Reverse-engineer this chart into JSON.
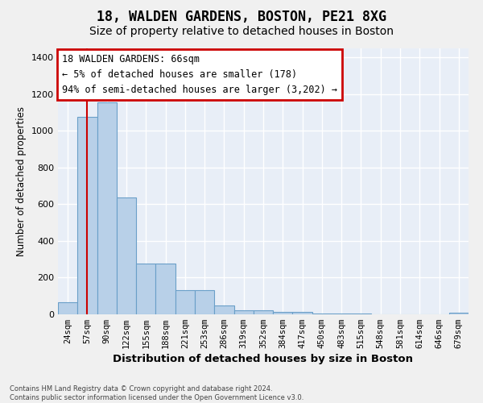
{
  "title1": "18, WALDEN GARDENS, BOSTON, PE21 8XG",
  "title2": "Size of property relative to detached houses in Boston",
  "xlabel": "Distribution of detached houses by size in Boston",
  "ylabel": "Number of detached properties",
  "bar_labels": [
    "24sqm",
    "57sqm",
    "90sqm",
    "122sqm",
    "155sqm",
    "188sqm",
    "221sqm",
    "253sqm",
    "286sqm",
    "319sqm",
    "352sqm",
    "384sqm",
    "417sqm",
    "450sqm",
    "483sqm",
    "515sqm",
    "548sqm",
    "581sqm",
    "614sqm",
    "646sqm",
    "679sqm"
  ],
  "bar_values": [
    68,
    1075,
    1155,
    635,
    275,
    275,
    130,
    130,
    48,
    22,
    22,
    12,
    12,
    5,
    5,
    5,
    0,
    0,
    0,
    0,
    8
  ],
  "bar_color": "#b8d0e8",
  "bar_edge_color": "#6a9fc8",
  "bg_color": "#e8eef7",
  "grid_color": "#ffffff",
  "vline_x": 1.0,
  "vline_color": "#cc0000",
  "annotation_text": "18 WALDEN GARDENS: 66sqm\n← 5% of detached houses are smaller (178)\n94% of semi-detached houses are larger (3,202) →",
  "annotation_box_color": "#ffffff",
  "annotation_border_color": "#cc0000",
  "footnote": "Contains HM Land Registry data © Crown copyright and database right 2024.\nContains public sector information licensed under the Open Government Licence v3.0.",
  "ylim": [
    0,
    1450
  ],
  "fig_bg": "#f0f0f0"
}
